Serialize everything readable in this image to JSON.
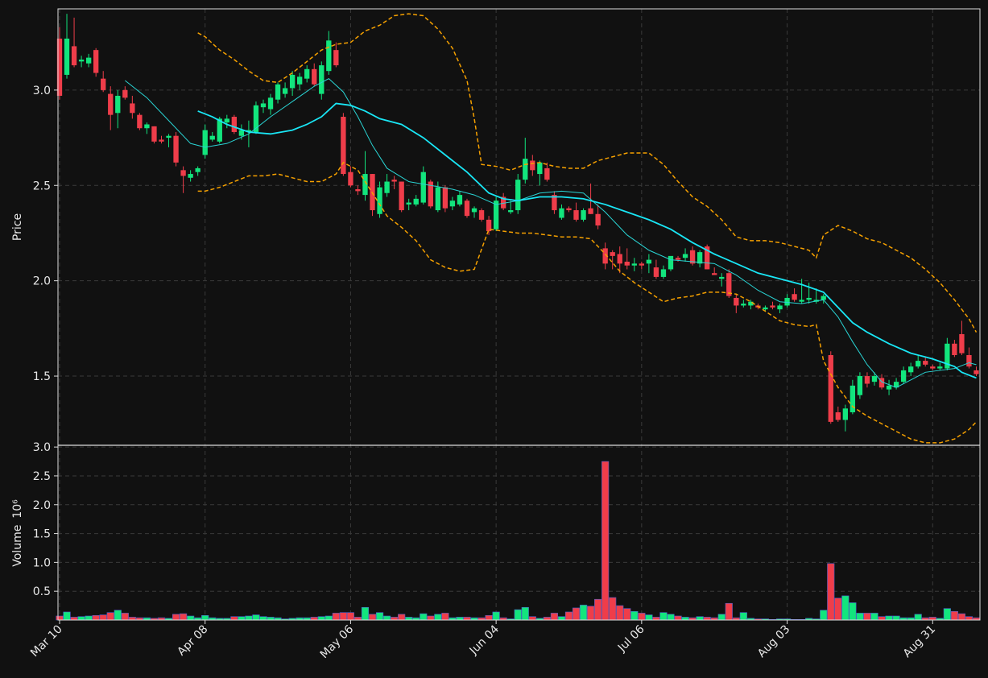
{
  "chart_data": {
    "type": "candlestick",
    "categories": [
      "Mar 10",
      null,
      null,
      null,
      null,
      null,
      null,
      null,
      null,
      null,
      null,
      null,
      null,
      null,
      null,
      null,
      null,
      null,
      null,
      null,
      "Apr 08",
      null,
      null,
      null,
      null,
      null,
      null,
      null,
      null,
      null,
      null,
      null,
      null,
      null,
      null,
      null,
      null,
      null,
      null,
      null,
      "May 06",
      null,
      null,
      null,
      null,
      null,
      null,
      null,
      null,
      null,
      null,
      null,
      null,
      null,
      null,
      null,
      null,
      null,
      null,
      null,
      "Jun 04",
      null,
      null,
      null,
      null,
      null,
      null,
      null,
      null,
      null,
      null,
      null,
      null,
      null,
      null,
      null,
      null,
      null,
      null,
      null,
      "Jul 06",
      null,
      null,
      null,
      null,
      null,
      null,
      null,
      null,
      null,
      null,
      null,
      null,
      null,
      null,
      null,
      null,
      null,
      null,
      null,
      "Aug 03",
      null,
      null,
      null,
      null,
      null,
      null,
      null,
      null,
      null,
      null,
      null,
      null,
      null,
      null,
      null,
      null,
      null,
      null,
      null,
      "Aug 31",
      null,
      null,
      null,
      null,
      null,
      null
    ],
    "open": [
      3.27,
      3.08,
      3.23,
      3.15,
      3.14,
      3.21,
      3.06,
      2.98,
      2.88,
      3.0,
      2.93,
      2.87,
      2.8,
      2.81,
      2.74,
      2.75,
      2.76,
      2.58,
      2.54,
      2.57,
      2.66,
      2.74,
      2.73,
      2.83,
      2.86,
      2.76,
      2.78,
      2.78,
      2.91,
      2.9,
      2.95,
      2.98,
      3.01,
      3.03,
      3.06,
      3.11,
      2.98,
      3.1,
      3.21,
      2.86,
      2.57,
      2.48,
      2.45,
      2.56,
      2.35,
      2.46,
      2.53,
      2.52,
      2.4,
      2.4,
      2.41,
      2.52,
      2.37,
      2.49,
      2.39,
      2.4,
      2.42,
      2.36,
      2.37,
      2.32,
      2.27,
      2.44,
      2.36,
      2.37,
      2.53,
      2.63,
      2.56,
      2.59,
      2.45,
      2.33,
      2.38,
      2.37,
      2.32,
      2.38,
      2.35,
      2.17,
      2.15,
      2.14,
      2.1,
      2.08,
      2.09,
      2.09,
      2.07,
      2.02,
      2.06,
      2.12,
      2.12,
      2.16,
      2.09,
      2.18,
      2.04,
      2.01,
      2.04,
      1.91,
      1.87,
      1.87,
      1.87,
      1.85,
      1.87,
      1.85,
      1.87,
      1.93,
      1.89,
      1.9,
      1.89,
      1.9,
      1.61,
      1.31,
      1.27,
      1.31,
      1.4,
      1.5,
      1.47,
      1.49,
      1.43,
      1.44,
      1.47,
      1.52,
      1.55,
      1.58,
      1.55,
      1.54,
      1.54,
      1.67,
      1.72,
      1.61,
      1.53
    ],
    "high": [
      3.33,
      3.4,
      3.38,
      3.18,
      3.19,
      3.22,
      3.1,
      3.02,
      3.0,
      3.02,
      2.97,
      2.88,
      2.83,
      2.81,
      2.76,
      2.77,
      2.78,
      2.6,
      2.58,
      2.6,
      2.82,
      2.78,
      2.86,
      2.87,
      2.87,
      2.82,
      2.84,
      2.94,
      2.95,
      2.98,
      3.04,
      3.04,
      3.1,
      3.09,
      3.13,
      3.14,
      3.15,
      3.31,
      3.25,
      2.88,
      2.6,
      2.5,
      2.68,
      2.56,
      2.52,
      2.56,
      2.55,
      2.52,
      2.43,
      2.45,
      2.6,
      2.53,
      2.52,
      2.5,
      2.44,
      2.47,
      2.43,
      2.39,
      2.38,
      2.34,
      2.44,
      2.46,
      2.42,
      2.56,
      2.75,
      2.66,
      2.63,
      2.62,
      2.47,
      2.4,
      2.39,
      2.41,
      2.38,
      2.51,
      2.4,
      2.2,
      2.16,
      2.18,
      2.17,
      2.12,
      2.1,
      2.14,
      2.11,
      2.08,
      2.12,
      2.13,
      2.17,
      2.18,
      2.16,
      2.19,
      2.07,
      2.04,
      2.06,
      1.93,
      1.9,
      1.9,
      1.88,
      1.87,
      1.89,
      1.88,
      1.93,
      1.96,
      2.01,
      1.99,
      1.96,
      1.93,
      1.63,
      1.34,
      1.35,
      1.48,
      1.52,
      1.52,
      1.52,
      1.51,
      1.48,
      1.49,
      1.55,
      1.57,
      1.61,
      1.6,
      1.56,
      1.57,
      1.7,
      1.69,
      1.79,
      1.65,
      1.55
    ],
    "low": [
      2.95,
      3.06,
      3.12,
      3.12,
      3.12,
      3.07,
      2.99,
      2.79,
      2.8,
      2.95,
      2.85,
      2.79,
      2.77,
      2.72,
      2.72,
      2.7,
      2.6,
      2.46,
      2.52,
      2.55,
      2.64,
      2.73,
      2.72,
      2.8,
      2.77,
      2.74,
      2.7,
      2.77,
      2.88,
      2.87,
      2.93,
      2.96,
      2.97,
      3.0,
      3.04,
      3.02,
      2.95,
      3.08,
      3.12,
      2.55,
      2.49,
      2.45,
      2.42,
      2.34,
      2.33,
      2.44,
      2.48,
      2.36,
      2.37,
      2.39,
      2.4,
      2.38,
      2.36,
      2.36,
      2.37,
      2.39,
      2.33,
      2.33,
      2.31,
      2.24,
      2.26,
      2.37,
      2.35,
      2.35,
      2.51,
      2.55,
      2.5,
      2.52,
      2.35,
      2.32,
      2.36,
      2.31,
      2.31,
      2.35,
      2.27,
      2.06,
      2.06,
      2.04,
      2.06,
      2.05,
      2.06,
      2.04,
      2.01,
      2.01,
      2.05,
      2.1,
      2.1,
      2.08,
      2.07,
      2.06,
      2.03,
      1.97,
      1.91,
      1.83,
      1.86,
      1.85,
      1.85,
      1.84,
      1.85,
      1.83,
      1.86,
      1.89,
      1.88,
      1.88,
      1.88,
      1.88,
      1.25,
      1.26,
      1.21,
      1.3,
      1.38,
      1.44,
      1.45,
      1.43,
      1.4,
      1.43,
      1.46,
      1.5,
      1.54,
      1.55,
      1.53,
      1.53,
      1.53,
      1.6,
      1.61,
      1.54,
      1.5
    ],
    "close": [
      2.97,
      3.27,
      3.13,
      3.16,
      3.17,
      3.09,
      3.0,
      2.87,
      2.97,
      2.96,
      2.88,
      2.8,
      2.82,
      2.73,
      2.73,
      2.76,
      2.62,
      2.55,
      2.56,
      2.59,
      2.79,
      2.76,
      2.85,
      2.85,
      2.78,
      2.79,
      2.79,
      2.92,
      2.93,
      2.96,
      3.03,
      3.01,
      3.08,
      3.07,
      3.11,
      3.03,
      3.13,
      3.26,
      3.13,
      2.56,
      2.5,
      2.47,
      2.56,
      2.37,
      2.49,
      2.52,
      2.52,
      2.37,
      2.41,
      2.43,
      2.57,
      2.39,
      2.49,
      2.38,
      2.42,
      2.45,
      2.34,
      2.38,
      2.32,
      2.26,
      2.42,
      2.38,
      2.37,
      2.53,
      2.64,
      2.58,
      2.62,
      2.53,
      2.37,
      2.38,
      2.37,
      2.32,
      2.37,
      2.35,
      2.29,
      2.09,
      2.13,
      2.09,
      2.08,
      2.09,
      2.08,
      2.11,
      2.02,
      2.06,
      2.13,
      2.11,
      2.14,
      2.09,
      2.15,
      2.06,
      2.03,
      2.02,
      1.92,
      1.87,
      1.88,
      1.89,
      1.86,
      1.86,
      1.86,
      1.87,
      1.91,
      1.9,
      1.9,
      1.91,
      1.9,
      1.92,
      1.26,
      1.27,
      1.33,
      1.45,
      1.5,
      1.46,
      1.5,
      1.44,
      1.45,
      1.47,
      1.53,
      1.55,
      1.58,
      1.56,
      1.54,
      1.55,
      1.67,
      1.61,
      1.62,
      1.55,
      1.51
    ],
    "up_color": "#12e57d",
    "down_color": "#ef3d4a",
    "xlim": [
      -0.22,
      126.5
    ],
    "ylabel": "Price",
    "ylim": [
      1.137,
      3.426
    ],
    "yticks": [
      1.5,
      {
        "value": 2.0,
        "label": "2.0"
      },
      2.5,
      {
        "value": 3.0,
        "label": "3.0"
      }
    ],
    "grid": true,
    "overlays": [
      {
        "color": "#2ad4d4",
        "linewidth": 1,
        "linestyle": "solid",
        "x": [
          9,
          12,
          15,
          18,
          20,
          23,
          26,
          29,
          32,
          35,
          37,
          39,
          41,
          43,
          45,
          48,
          51,
          54,
          57,
          60,
          63,
          66,
          69,
          72,
          75,
          78,
          81,
          84,
          87,
          90,
          93,
          96,
          99,
          102,
          105,
          107,
          109,
          111,
          113,
          115,
          117,
          119,
          121,
          123,
          125,
          126
        ],
        "values": [
          3.05,
          2.96,
          2.84,
          2.72,
          2.7,
          2.72,
          2.77,
          2.86,
          2.94,
          3.02,
          3.06,
          2.99,
          2.86,
          2.71,
          2.59,
          2.52,
          2.5,
          2.48,
          2.45,
          2.4,
          2.42,
          2.46,
          2.47,
          2.46,
          2.36,
          2.24,
          2.16,
          2.11,
          2.1,
          2.09,
          2.03,
          1.95,
          1.89,
          1.88,
          1.9,
          1.81,
          1.68,
          1.56,
          1.47,
          1.44,
          1.48,
          1.52,
          1.53,
          1.54,
          1.57,
          1.56
        ]
      },
      {
        "color": "#19e6f5",
        "linewidth": 1.8,
        "linestyle": "solid",
        "x": [
          19,
          21,
          23,
          26,
          29,
          32,
          34,
          36,
          38,
          40,
          42,
          44,
          47,
          50,
          53,
          56,
          59,
          61,
          63,
          66,
          69,
          72,
          75,
          78,
          81,
          84,
          87,
          90,
          93,
          96,
          99,
          102,
          105,
          107,
          109,
          111,
          114,
          117,
          120,
          123,
          124,
          126
        ],
        "values": [
          2.89,
          2.86,
          2.82,
          2.78,
          2.77,
          2.79,
          2.82,
          2.86,
          2.93,
          2.92,
          2.89,
          2.85,
          2.82,
          2.75,
          2.66,
          2.57,
          2.46,
          2.43,
          2.42,
          2.44,
          2.44,
          2.43,
          2.4,
          2.36,
          2.32,
          2.27,
          2.2,
          2.14,
          2.09,
          2.04,
          2.01,
          1.98,
          1.94,
          1.86,
          1.78,
          1.73,
          1.67,
          1.62,
          1.59,
          1.55,
          1.52,
          1.49
        ]
      },
      {
        "color": "#f5a000",
        "linewidth": 1.5,
        "linestyle": "dashed",
        "x": [
          19,
          20,
          22,
          24,
          26,
          28,
          30,
          32,
          34,
          36,
          38,
          40,
          42,
          44,
          46,
          48,
          50,
          52,
          54,
          56,
          57,
          58,
          60,
          62,
          64,
          66,
          68,
          70,
          72,
          74,
          76,
          78,
          81,
          83,
          85,
          87,
          89,
          91,
          93,
          95,
          97,
          99,
          101,
          103,
          104,
          105,
          107,
          109,
          111,
          113,
          115,
          117,
          119,
          121,
          123,
          125,
          126
        ],
        "values": [
          3.3,
          3.28,
          3.21,
          3.16,
          3.1,
          3.05,
          3.04,
          3.09,
          3.15,
          3.21,
          3.24,
          3.25,
          3.31,
          3.34,
          3.39,
          3.4,
          3.39,
          3.32,
          3.22,
          3.05,
          2.85,
          2.61,
          2.6,
          2.58,
          2.61,
          2.62,
          2.6,
          2.59,
          2.59,
          2.63,
          2.65,
          2.67,
          2.67,
          2.61,
          2.52,
          2.44,
          2.39,
          2.32,
          2.23,
          2.21,
          2.21,
          2.2,
          2.18,
          2.16,
          2.12,
          2.24,
          2.29,
          2.26,
          2.22,
          2.2,
          2.16,
          2.12,
          2.06,
          1.99,
          1.9,
          1.8,
          1.73
        ]
      },
      {
        "color": "#f5a000",
        "linewidth": 1.5,
        "linestyle": "dashed",
        "x": [
          19,
          20,
          22,
          24,
          26,
          28,
          30,
          32,
          34,
          36,
          38,
          39,
          41,
          43,
          45,
          47,
          49,
          51,
          53,
          55,
          57,
          59,
          61,
          63,
          65,
          67,
          69,
          71,
          73,
          75,
          77,
          79,
          81,
          83,
          85,
          87,
          89,
          91,
          93,
          95,
          97,
          99,
          101,
          103,
          104,
          105,
          107,
          109,
          111,
          113,
          115,
          117,
          119,
          121,
          123,
          125,
          126
        ],
        "values": [
          2.47,
          2.47,
          2.49,
          2.52,
          2.55,
          2.55,
          2.56,
          2.54,
          2.52,
          2.52,
          2.56,
          2.62,
          2.58,
          2.46,
          2.34,
          2.28,
          2.21,
          2.11,
          2.07,
          2.05,
          2.06,
          2.27,
          2.26,
          2.25,
          2.25,
          2.24,
          2.23,
          2.23,
          2.22,
          2.14,
          2.05,
          1.99,
          1.94,
          1.89,
          1.91,
          1.92,
          1.94,
          1.94,
          1.93,
          1.89,
          1.84,
          1.79,
          1.77,
          1.76,
          1.77,
          1.58,
          1.44,
          1.34,
          1.29,
          1.25,
          1.21,
          1.17,
          1.15,
          1.15,
          1.17,
          1.22,
          1.26
        ]
      }
    ],
    "volume": {
      "ylabel": "Volume",
      "scale_label": "10⁶",
      "ylim": [
        0,
        3.03
      ],
      "yticks": [
        0.5,
        {
          "value": 1.0,
          "label": "1.0"
        },
        1.5,
        {
          "value": 2.0,
          "label": "2.0"
        },
        2.5,
        {
          "value": 3.0,
          "label": "3.0"
        }
      ],
      "values": [
        0.07,
        0.14,
        0.05,
        0.06,
        0.07,
        0.08,
        0.09,
        0.13,
        0.17,
        0.12,
        0.05,
        0.04,
        0.04,
        0.03,
        0.04,
        0.03,
        0.1,
        0.11,
        0.07,
        0.04,
        0.08,
        0.04,
        0.03,
        0.03,
        0.06,
        0.06,
        0.07,
        0.09,
        0.06,
        0.05,
        0.04,
        0.02,
        0.03,
        0.04,
        0.04,
        0.05,
        0.06,
        0.07,
        0.12,
        0.13,
        0.13,
        0.05,
        0.22,
        0.1,
        0.13,
        0.07,
        0.05,
        0.1,
        0.05,
        0.04,
        0.11,
        0.07,
        0.1,
        0.12,
        0.04,
        0.05,
        0.05,
        0.04,
        0.04,
        0.08,
        0.14,
        0.04,
        0.02,
        0.18,
        0.22,
        0.06,
        0.03,
        0.05,
        0.12,
        0.06,
        0.14,
        0.21,
        0.26,
        0.24,
        0.36,
        2.75,
        0.39,
        0.25,
        0.2,
        0.15,
        0.12,
        0.09,
        0.05,
        0.13,
        0.1,
        0.07,
        0.05,
        0.04,
        0.06,
        0.05,
        0.04,
        0.1,
        0.29,
        0.04,
        0.13,
        0.03,
        0.02,
        0.02,
        0.01,
        0.02,
        0.02,
        0.01,
        0.01,
        0.03,
        0.02,
        0.17,
        0.98,
        0.38,
        0.42,
        0.3,
        0.12,
        0.12,
        0.12,
        0.06,
        0.07,
        0.07,
        0.04,
        0.04,
        0.1,
        0.04,
        0.05,
        0.03,
        0.2,
        0.15,
        0.11,
        0.06,
        0.04
      ]
    }
  }
}
